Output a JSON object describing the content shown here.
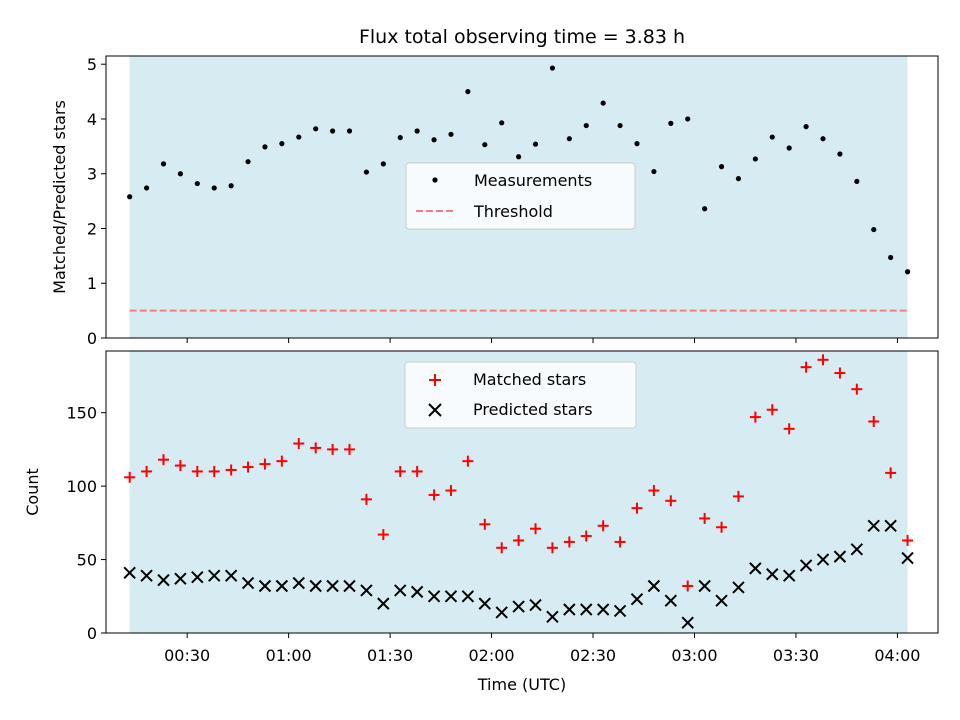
{
  "chart_data": [
    {
      "type": "scatter",
      "title": "Flux total observing time = 3.83 h",
      "ylabel": "Matched/Predicted stars",
      "ylim": [
        0,
        5.15
      ],
      "yticks": [
        0,
        1,
        2,
        3,
        4,
        5
      ],
      "span_color": "#add8e6",
      "legend": {
        "placement": "center"
      },
      "series": [
        {
          "name": "Measurements",
          "marker": "dot",
          "color": "#000000",
          "x": [
            "00:13",
            "00:18",
            "00:23",
            "00:28",
            "00:33",
            "00:38",
            "00:43",
            "00:48",
            "00:53",
            "00:58",
            "01:03",
            "01:08",
            "01:13",
            "01:18",
            "01:23",
            "01:28",
            "01:33",
            "01:38",
            "01:43",
            "01:48",
            "01:53",
            "01:58",
            "02:03",
            "02:08",
            "02:13",
            "02:18",
            "02:23",
            "02:28",
            "02:33",
            "02:38",
            "02:43",
            "02:48",
            "02:53",
            "02:58",
            "03:03",
            "03:08",
            "03:13",
            "03:18",
            "03:23",
            "03:28",
            "03:33",
            "03:38",
            "03:43",
            "03:48",
            "03:53",
            "03:58",
            "04:03"
          ],
          "values": [
            2.58,
            2.74,
            3.18,
            3.0,
            2.82,
            2.74,
            2.78,
            3.22,
            3.49,
            3.55,
            3.67,
            3.82,
            3.78,
            3.78,
            3.03,
            3.18,
            3.66,
            3.78,
            3.62,
            3.72,
            4.5,
            3.53,
            3.93,
            3.31,
            3.54,
            4.93,
            3.64,
            3.88,
            4.29,
            3.88,
            3.55,
            3.04,
            3.92,
            4.0,
            2.36,
            3.13,
            2.91,
            3.27,
            3.67,
            3.47,
            3.86,
            3.64,
            3.36,
            2.86,
            1.98,
            1.47,
            1.21
          ]
        },
        {
          "name": "Threshold",
          "type": "hline",
          "color": "#f08080",
          "style": "dashed",
          "value": 0.5
        }
      ]
    },
    {
      "type": "scatter",
      "xlabel": "Time (UTC)",
      "ylabel": "Count",
      "ylim": [
        0,
        192
      ],
      "yticks": [
        0,
        50,
        100,
        150
      ],
      "xlim": [
        "00:06",
        "04:12"
      ],
      "xticks": [
        "00:30",
        "01:00",
        "01:30",
        "02:00",
        "02:30",
        "03:00",
        "03:30",
        "04:00"
      ],
      "span": [
        "00:13",
        "04:03"
      ],
      "span_color": "#add8e6",
      "legend": {
        "placement": "top-center"
      },
      "x": [
        "00:13",
        "00:18",
        "00:23",
        "00:28",
        "00:33",
        "00:38",
        "00:43",
        "00:48",
        "00:53",
        "00:58",
        "01:03",
        "01:08",
        "01:13",
        "01:18",
        "01:23",
        "01:28",
        "01:33",
        "01:38",
        "01:43",
        "01:48",
        "01:53",
        "01:58",
        "02:03",
        "02:08",
        "02:13",
        "02:18",
        "02:23",
        "02:28",
        "02:33",
        "02:38",
        "02:43",
        "02:48",
        "02:53",
        "02:58",
        "03:03",
        "03:08",
        "03:13",
        "03:18",
        "03:23",
        "03:28",
        "03:33",
        "03:38",
        "03:43",
        "03:48",
        "03:53",
        "03:58",
        "04:03"
      ],
      "series": [
        {
          "name": "Matched stars",
          "marker": "plus",
          "color": "#ff0000",
          "values": [
            106,
            110,
            118,
            114,
            110,
            110,
            111,
            113,
            115,
            117,
            129,
            126,
            125,
            125,
            91,
            67,
            110,
            110,
            94,
            97,
            117,
            74,
            58,
            63,
            71,
            58,
            62,
            66,
            73,
            62,
            85,
            97,
            90,
            32,
            78,
            72,
            93,
            147,
            152,
            139,
            181,
            186,
            177,
            166,
            144,
            109,
            63
          ]
        },
        {
          "name": "Predicted stars",
          "marker": "x",
          "color": "#000000",
          "values": [
            41,
            39,
            36,
            37,
            38,
            39,
            39,
            34,
            32,
            32,
            34,
            32,
            32,
            32,
            29,
            20,
            29,
            28,
            25,
            25,
            25,
            20,
            14,
            18,
            19,
            11,
            16,
            16,
            16,
            15,
            23,
            32,
            22,
            7,
            32,
            22,
            31,
            44,
            40,
            39,
            46,
            50,
            52,
            57,
            73,
            73,
            51
          ]
        }
      ]
    }
  ]
}
